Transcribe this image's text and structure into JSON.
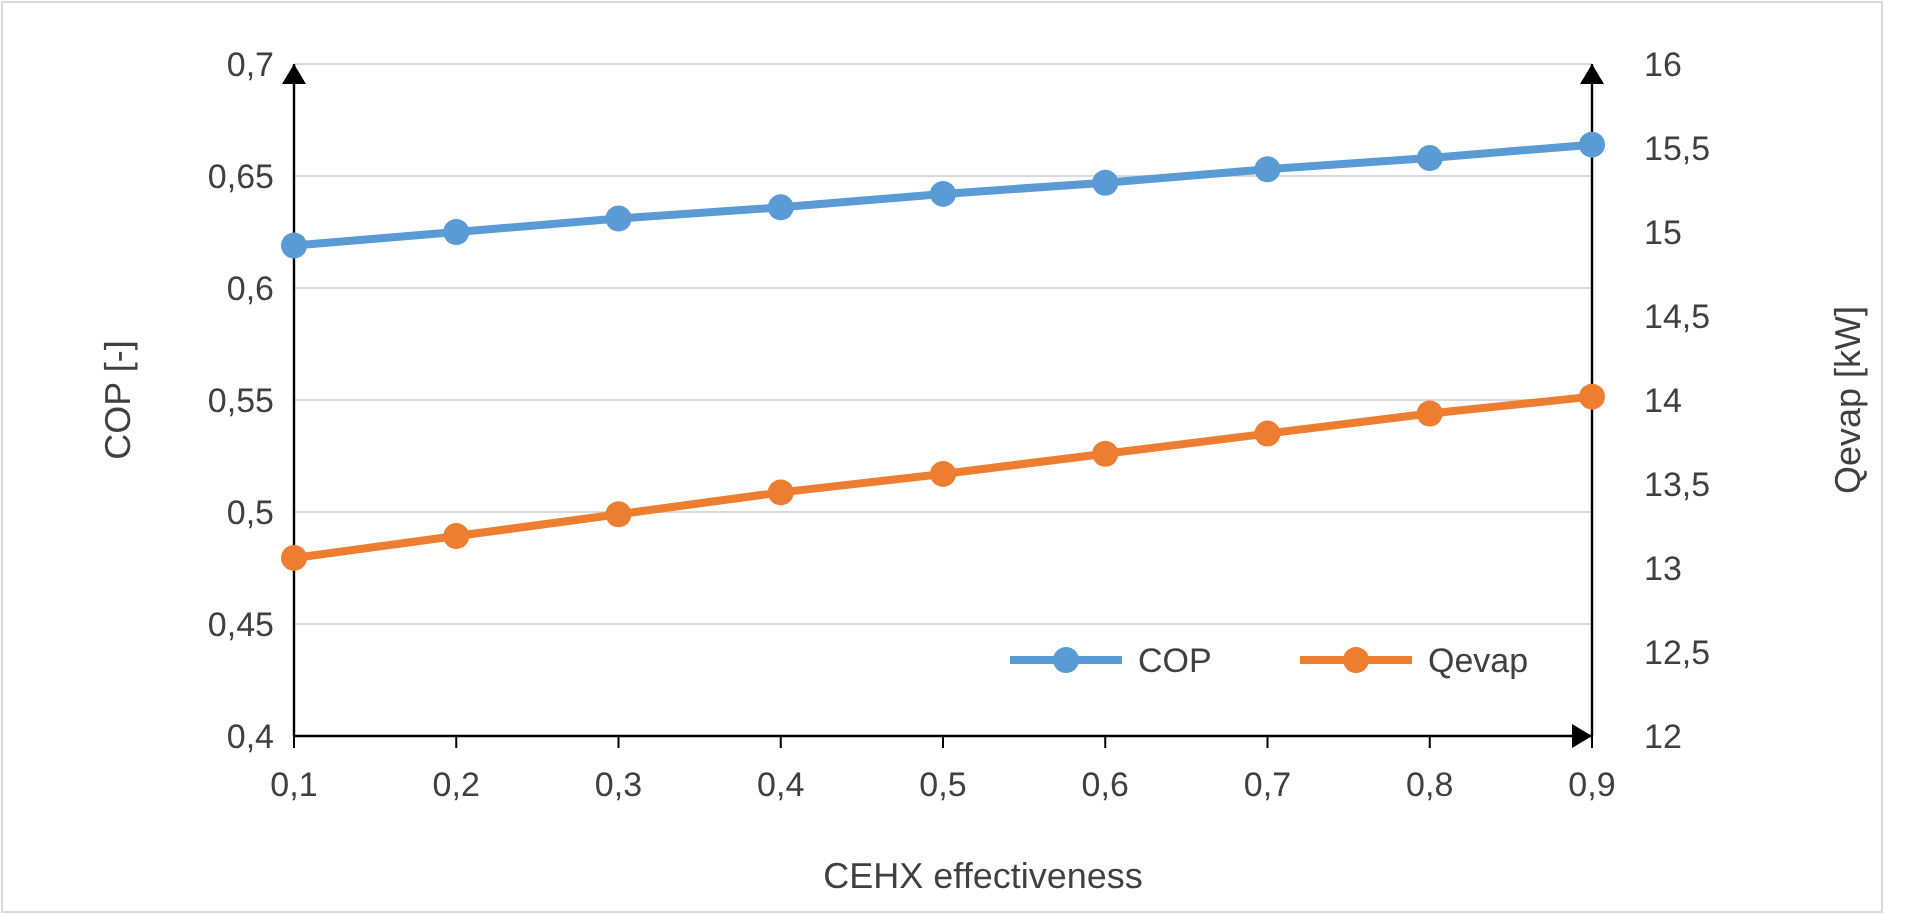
{
  "chart_data": {
    "type": "line",
    "xlabel": "CEHX effectiveness",
    "ylabel": "COP [-]",
    "y2label": "Qevap [kW]",
    "x": [
      0.1,
      0.2,
      0.3,
      0.4,
      0.5,
      0.6,
      0.7,
      0.8,
      0.9
    ],
    "series": [
      {
        "name": "COP",
        "color": "#5b9bd5",
        "values": [
          0.619,
          0.625,
          0.631,
          0.636,
          0.642,
          0.647,
          0.653,
          0.658,
          0.664
        ]
      },
      {
        "name": "Qevap",
        "color": "#ed7d31",
        "axis": "y2",
        "values": [
          13.06,
          13.19,
          13.32,
          13.45,
          13.56,
          13.68,
          13.8,
          13.92,
          14.02
        ]
      }
    ],
    "xlim": [
      0.1,
      0.9
    ],
    "xticks": [
      {
        "value": 0.1,
        "label": "0,1"
      },
      {
        "value": 0.2,
        "label": "0,2"
      },
      {
        "value": 0.3,
        "label": "0,3"
      },
      {
        "value": 0.4,
        "label": "0,4"
      },
      {
        "value": 0.5,
        "label": "0,5"
      },
      {
        "value": 0.6,
        "label": "0,6"
      },
      {
        "value": 0.7,
        "label": "0,7"
      },
      {
        "value": 0.8,
        "label": "0,8"
      },
      {
        "value": 0.9,
        "label": "0,9"
      }
    ],
    "ylim": [
      0.4,
      0.7
    ],
    "yticks": [
      {
        "value": 0.4,
        "label": "0,4"
      },
      {
        "value": 0.45,
        "label": "0,45"
      },
      {
        "value": 0.5,
        "label": "0,5"
      },
      {
        "value": 0.55,
        "label": "0,55"
      },
      {
        "value": 0.6,
        "label": "0,6"
      },
      {
        "value": 0.65,
        "label": "0,65"
      },
      {
        "value": 0.7,
        "label": "0,7"
      }
    ],
    "y2lim": [
      12,
      16
    ],
    "y2ticks": [
      12,
      {
        "value": 12.5,
        "label": "12,5"
      },
      13,
      {
        "value": 13.5,
        "label": "13,5"
      },
      14,
      {
        "value": 14.5,
        "label": "14,5"
      },
      15,
      {
        "value": 15.5,
        "label": "15,5"
      },
      16
    ],
    "grid": "y",
    "legend": "bottom right",
    "marker": "circle",
    "line_style": "solid"
  }
}
